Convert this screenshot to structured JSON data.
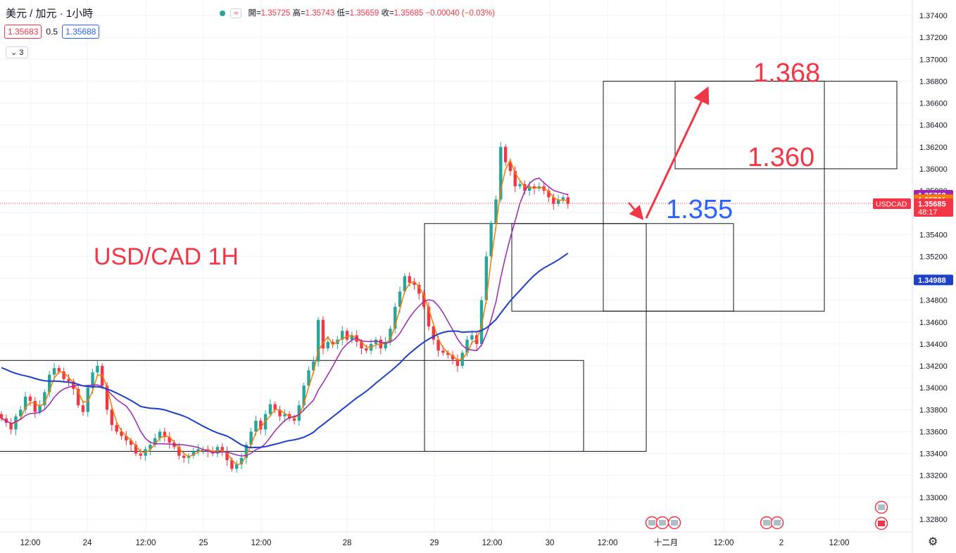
{
  "header": {
    "symbol_title": "美元 / 加元 · 1小時",
    "ohlc_label_open": "開=",
    "open": "1.35725",
    "ohlc_label_high": "高=",
    "high": "1.35743",
    "ohlc_label_low": "低=",
    "low": "1.35659",
    "ohlc_label_close": "收=",
    "close": "1.35685",
    "change": "−0.00040 (−0.03%)",
    "pill": "≈"
  },
  "quote": {
    "bid": "1.35683",
    "spread": "0.5",
    "ask": "1.35688"
  },
  "indicator_toggle": "3",
  "colors": {
    "up": "#26a69a",
    "down": "#f23645",
    "ma_fast": "#f57c00",
    "ma_mid": "#9c27b0",
    "ma_slow": "#1e40c8",
    "annot_red": "#f23645",
    "annot_blue": "#2962ff"
  },
  "chart_data": {
    "type": "candlestick",
    "symbol": "USDCAD",
    "timeframe": "1H",
    "y_axis": {
      "ticks": [
        "1.37400",
        "1.37200",
        "1.37000",
        "1.36800",
        "1.36600",
        "1.36400",
        "1.36200",
        "1.36000",
        "1.35800",
        "1.35600",
        "1.35400",
        "1.35200",
        "1.35000",
        "1.34800",
        "1.34600",
        "1.34400",
        "1.34200",
        "1.34000",
        "1.33800",
        "1.33600",
        "1.33400",
        "1.33200",
        "1.33000",
        "1.32800"
      ],
      "ylim": [
        1.3272,
        1.3746
      ]
    },
    "x_axis": {
      "ticks": [
        "12:00",
        "24",
        "12:00",
        "25",
        "12:00",
        "28",
        "29",
        "12:00",
        "30",
        "12:00",
        "十二月",
        "12:00",
        "2",
        "12:00"
      ]
    },
    "price_labels": [
      {
        "text": "1.35762",
        "value": 1.35762,
        "color": "#9c27b0"
      },
      {
        "text": "1.35721",
        "value": 1.35721,
        "color": "#f57c00"
      },
      {
        "text": "1.35685",
        "value": 1.35685,
        "color": "#f23645",
        "sub": "48:17",
        "tag": "USDCAD"
      },
      {
        "text": "1.34988",
        "value": 1.34988,
        "color": "#1e40c8"
      }
    ],
    "annotations": [
      {
        "text": "USD/CAD 1H",
        "color": "#f23645"
      },
      {
        "text": "1.368",
        "color": "#f23645"
      },
      {
        "text": "1.360",
        "color": "#f23645"
      },
      {
        "text": "1.355",
        "color": "#2962ff"
      }
    ],
    "key_levels": [
      1.368,
      1.36,
      1.355,
      1.347,
      1.3425,
      1.3342
    ],
    "candles_close": [
      1.3372,
      1.3368,
      1.3362,
      1.3374,
      1.338,
      1.3392,
      1.3388,
      1.3378,
      1.3384,
      1.3396,
      1.3412,
      1.3418,
      1.3415,
      1.3408,
      1.3406,
      1.3399,
      1.3384,
      1.3378,
      1.34,
      1.3414,
      1.342,
      1.3402,
      1.338,
      1.3366,
      1.336,
      1.3356,
      1.3352,
      1.3348,
      1.334,
      1.3338,
      1.3344,
      1.3348,
      1.3354,
      1.336,
      1.3355,
      1.335,
      1.3346,
      1.3338,
      1.3336,
      1.3338,
      1.3342,
      1.3344,
      1.3344,
      1.3342,
      1.334,
      1.3346,
      1.3342,
      1.3334,
      1.3326,
      1.333,
      1.3336,
      1.3348,
      1.336,
      1.337,
      1.3362,
      1.3376,
      1.3385,
      1.338,
      1.3374,
      1.3376,
      1.3372,
      1.337,
      1.3384,
      1.3402,
      1.3416,
      1.3424,
      1.3462,
      1.3436,
      1.3442,
      1.344,
      1.3444,
      1.3452,
      1.3444,
      1.3448,
      1.3442,
      1.3436,
      1.3434,
      1.344,
      1.3444,
      1.3436,
      1.3442,
      1.3454,
      1.3474,
      1.3488,
      1.3502,
      1.3496,
      1.3494,
      1.3486,
      1.3474,
      1.3456,
      1.3444,
      1.3434,
      1.3432,
      1.343,
      1.3426,
      1.342,
      1.3432,
      1.3444,
      1.3448,
      1.344,
      1.348,
      1.352,
      1.355,
      1.3572,
      1.362,
      1.3606,
      1.3598,
      1.3584,
      1.3586,
      1.358,
      1.3584,
      1.3582,
      1.3584,
      1.358,
      1.3574,
      1.3568,
      1.3572,
      1.3574,
      1.3568
    ]
  }
}
